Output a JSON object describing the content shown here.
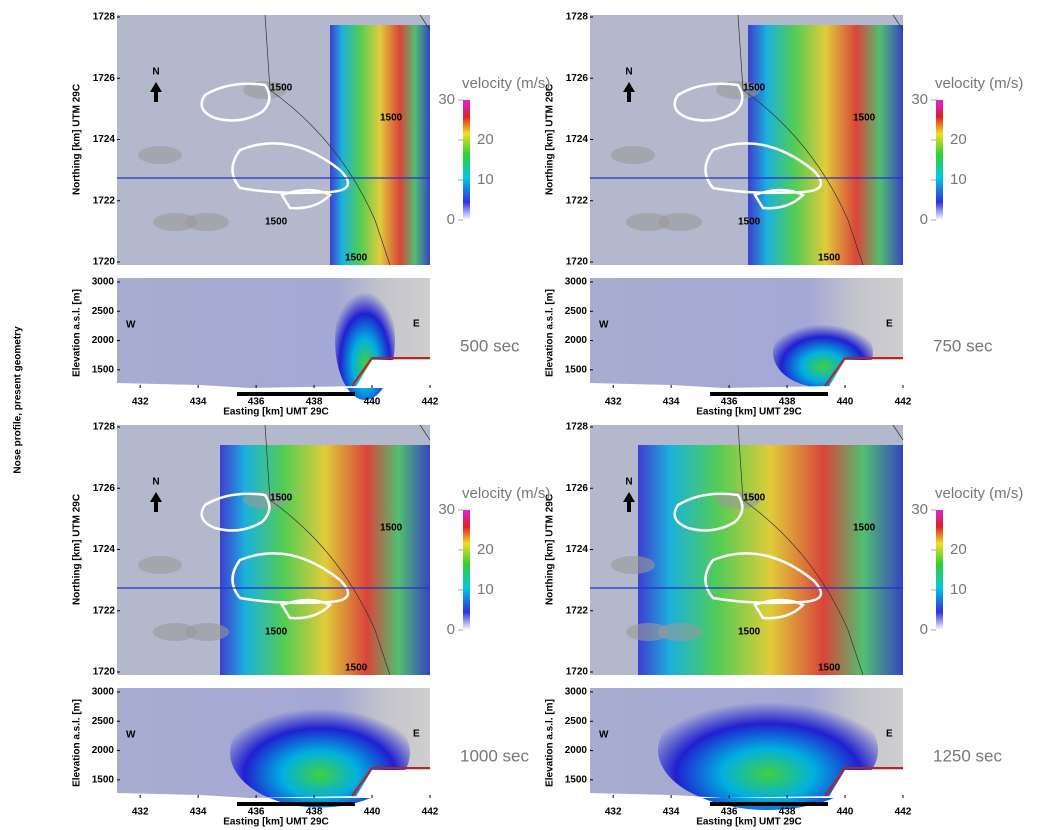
{
  "side_label": "Nose profile, present geometry",
  "map": {
    "ylabel": "Northing [km] UTM 29C",
    "ylim": [
      1720,
      1728
    ],
    "yticks": [
      1720,
      1722,
      1724,
      1726,
      1728
    ],
    "north": "N",
    "contour_label": "1500"
  },
  "colorbar": {
    "title": "velocity (m/s)",
    "lim": [
      0,
      30
    ],
    "ticks": [
      0,
      10,
      20,
      30
    ]
  },
  "profile": {
    "ylabel": "Elevation a.s.l. [m]",
    "xlabel": "Easting [km] UMT 29C",
    "xlim": [
      431.2,
      442
    ],
    "xticks": [
      432,
      434,
      436,
      438,
      440,
      442
    ],
    "ylim": [
      1190,
      3068
    ],
    "yticks": [
      1500,
      2000,
      2500,
      3000
    ],
    "west": "W",
    "east": "E"
  },
  "panels": [
    {
      "time": "500 sec"
    },
    {
      "time": "750 sec"
    },
    {
      "time": "1000 sec"
    },
    {
      "time": "1250 sec"
    }
  ]
}
